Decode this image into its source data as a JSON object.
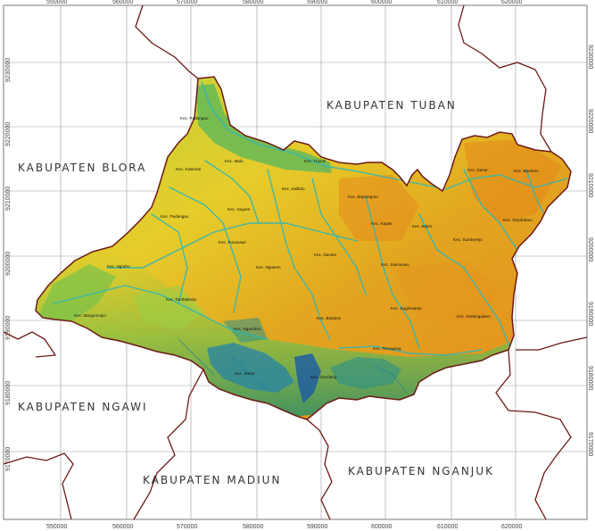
{
  "grid": {
    "easting": [
      "550000",
      "560000",
      "570000",
      "580000",
      "590000",
      "600000",
      "610000",
      "620000"
    ],
    "northing": [
      "9220000",
      "9210000",
      "9200000",
      "9190000",
      "9180000",
      "9170000"
    ],
    "northing_top": "9230000"
  },
  "regions": {
    "tuban": "KABUPATEN TUBAN",
    "blora": "KABUPATEN BLORA",
    "ngawi": "KABUPATEN NGAWI",
    "madiun": "KABUPATEN MADIUN",
    "nganjuk": "KABUPATEN NGANJUK"
  },
  "kecamatan": [
    "Kec. Padangan",
    "Kec. Malo",
    "Kec. Trucuk",
    "Kec. Kasiman",
    "Kec. Kalitidu",
    "Kec. Kanor",
    "Kec. Baureno",
    "Kec. Padangan",
    "Kec. Gayam",
    "Kec. Bojonegoro",
    "Kec. Kapas",
    "Kec. Balen",
    "Kec. Kepohbaru",
    "Kec. Purwosari",
    "Kec. Sumberejo",
    "Kec. Ngraho",
    "Kec. Ngasem",
    "Kec. Dander",
    "Kec. Sukosewu",
    "Kec. Tambakrejo",
    "Kec. Margomulyo",
    "Kec. Sugihwaras",
    "Kec. Bubulan",
    "Kec. Kedungadem",
    "Kec. Ngambon",
    "Kec. Temayang",
    "Kec. Sekar",
    "Kec. Gondang"
  ],
  "colors": {
    "low": "#e8d22a",
    "mid": "#d9b41f",
    "high": "#e0901c",
    "green": "#8cc63f",
    "water": "#2fb6b6",
    "deep": "#1f5fa0",
    "border": "#6b1a16"
  }
}
